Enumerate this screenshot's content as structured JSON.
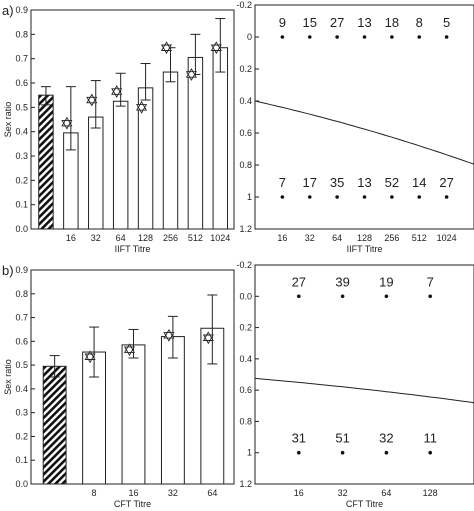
{
  "panel_labels": [
    "a)",
    "b)"
  ],
  "chart_data": [
    {
      "type": "bar",
      "panel": "a) left",
      "xlabel": "IIFT Titre",
      "ylabel": "Sex ratio",
      "ylim": [
        0.0,
        0.9
      ],
      "yticks": [
        "0.0",
        "0.1",
        "0.2",
        "0.3",
        "0.4",
        "0.5",
        "0.6",
        "0.7",
        "0.8",
        "0.9"
      ],
      "categories": [
        "",
        "16",
        "32",
        "64",
        "128",
        "256",
        "512",
        "1024"
      ],
      "bars": [
        {
          "value": 0.55,
          "low": 0.51,
          "high": 0.585,
          "hatched": true,
          "star": null
        },
        {
          "value": 0.395,
          "low": 0.325,
          "high": 0.585,
          "hatched": false,
          "star": 0.435
        },
        {
          "value": 0.46,
          "low": 0.415,
          "high": 0.61,
          "hatched": false,
          "star": 0.53
        },
        {
          "value": 0.525,
          "low": 0.505,
          "high": 0.64,
          "hatched": false,
          "star": 0.565
        },
        {
          "value": 0.58,
          "low": 0.53,
          "high": 0.68,
          "hatched": false,
          "star": 0.5
        },
        {
          "value": 0.645,
          "low": 0.605,
          "high": 0.745,
          "hatched": false,
          "star": 0.745
        },
        {
          "value": 0.705,
          "low": 0.635,
          "high": 0.8,
          "hatched": false,
          "star": 0.635
        },
        {
          "value": 0.745,
          "low": 0.645,
          "high": 0.865,
          "hatched": false,
          "star": 0.745
        }
      ]
    },
    {
      "type": "scatter",
      "panel": "a) right",
      "xlabel": "IIFT Titre",
      "ylabel": "",
      "ylim": [
        -0.2,
        1.2
      ],
      "yreversed": true,
      "yticks": [
        "-0.2",
        "0",
        "0.2",
        "0.4",
        "0.6",
        "0.8",
        "1",
        "1.2"
      ],
      "categories": [
        "16",
        "32",
        "64",
        "128",
        "256",
        "512",
        "1024"
      ],
      "counts_top": [
        "9",
        "15",
        "27",
        "13",
        "18",
        "8",
        "5"
      ],
      "counts_bottom": [
        "7",
        "17",
        "35",
        "13",
        "52",
        "14",
        "27"
      ],
      "points_y": [
        0,
        1
      ],
      "curve": {
        "y_start": 0.4,
        "y_end": 0.795
      }
    },
    {
      "type": "bar",
      "panel": "b) left",
      "xlabel": "CFT Titre",
      "ylabel": "Sex ratio",
      "ylim": [
        0.0,
        0.9
      ],
      "yticks": [
        "0.0",
        "0.1",
        "0.2",
        "0.3",
        "0.4",
        "0.5",
        "0.6",
        "0.7",
        "0.8",
        "0.9"
      ],
      "categories": [
        "",
        "8",
        "16",
        "32",
        "64"
      ],
      "bars": [
        {
          "value": 0.495,
          "low": 0.45,
          "high": 0.54,
          "hatched": true,
          "star": null
        },
        {
          "value": 0.555,
          "low": 0.45,
          "high": 0.66,
          "hatched": false,
          "star": 0.535
        },
        {
          "value": 0.585,
          "low": 0.53,
          "high": 0.65,
          "hatched": false,
          "star": 0.565
        },
        {
          "value": 0.62,
          "low": 0.53,
          "high": 0.705,
          "hatched": false,
          "star": 0.625
        },
        {
          "value": 0.655,
          "low": 0.505,
          "high": 0.795,
          "hatched": false,
          "star": 0.615
        }
      ]
    },
    {
      "type": "scatter",
      "panel": "b) right",
      "xlabel": "CFT Titre",
      "ylabel": "",
      "ylim": [
        -0.2,
        1.2
      ],
      "yreversed": true,
      "yticks": [
        "-0.2",
        "0.0",
        "0.2",
        "0.4",
        "0.6",
        "0.8",
        "1",
        "1.2"
      ],
      "categories": [
        "16",
        "32",
        "64",
        "128"
      ],
      "counts_top": [
        "27",
        "39",
        "19",
        "7"
      ],
      "counts_bottom": [
        "31",
        "51",
        "32",
        "11"
      ],
      "points_y": [
        0,
        1
      ],
      "curve": {
        "y_start": 0.525,
        "y_end": 0.68
      }
    }
  ]
}
